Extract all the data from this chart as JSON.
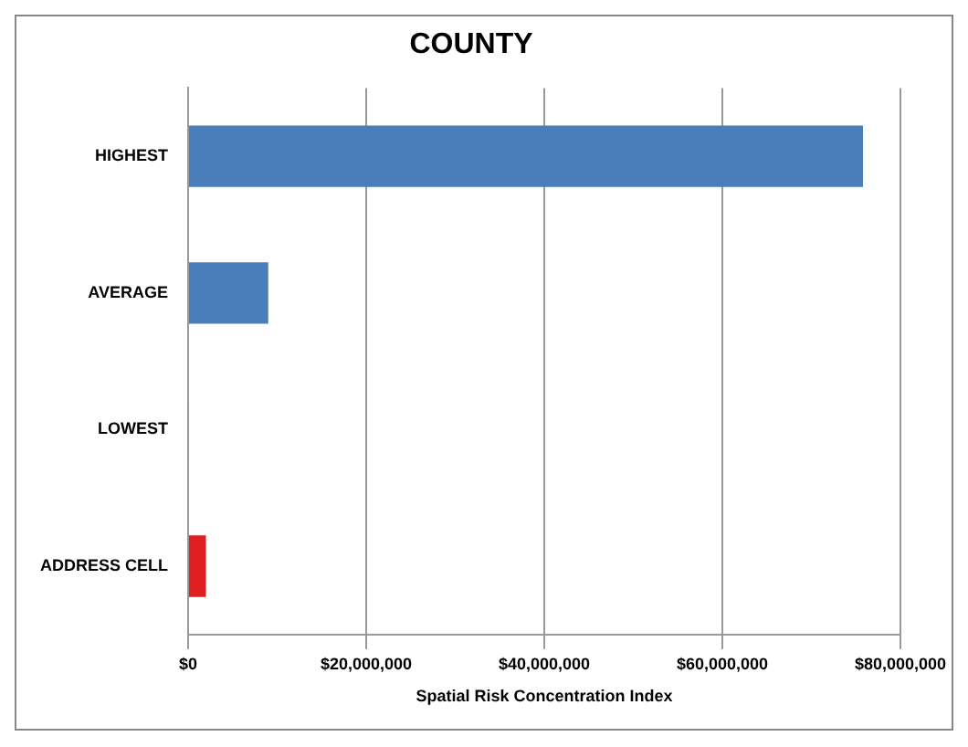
{
  "chart_data": {
    "type": "bar",
    "orientation": "horizontal",
    "title": "COUNTY",
    "xlabel": "Spatial Risk Concentration Index",
    "categories": [
      "HIGHEST",
      "AVERAGE",
      "LOWEST",
      "ADDRESS CELL"
    ],
    "values": [
      75800000,
      9000000,
      100000,
      2000000
    ],
    "colors": [
      "#4a7ebb",
      "#4a7ebb",
      "#4a7ebb",
      "#e02020"
    ],
    "xlim": [
      0,
      80000000
    ],
    "xticks": [
      {
        "value": 0,
        "label": "$0"
      },
      {
        "value": 20000000,
        "label": "$20,000,000"
      },
      {
        "value": 40000000,
        "label": "$40,000,000"
      },
      {
        "value": 60000000,
        "label": "$60,000,000"
      },
      {
        "value": 80000000,
        "label": "$80,000,000"
      }
    ],
    "grid": "x",
    "legend": false
  }
}
